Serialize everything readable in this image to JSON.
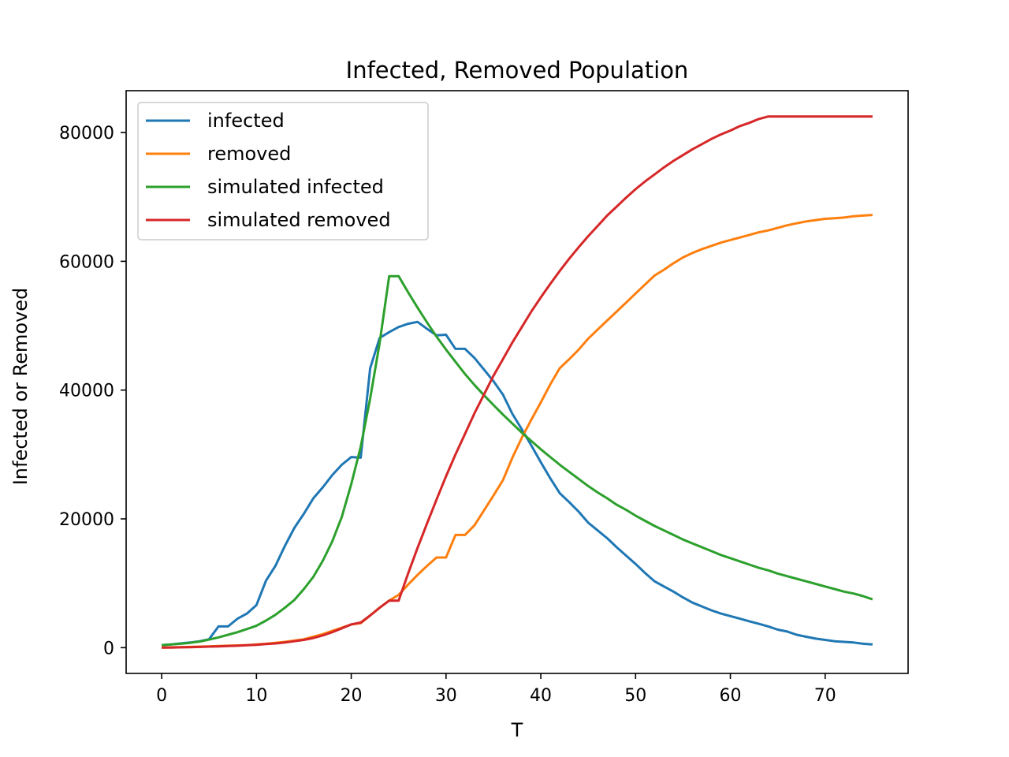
{
  "chart_data": {
    "type": "line",
    "title": "Infected, Removed Population",
    "xlabel": "T",
    "ylabel": "Infected or Removed",
    "xlim": [
      -3.75,
      78.75
    ],
    "ylim": [
      -4000,
      86500
    ],
    "xticks": [
      0,
      10,
      20,
      30,
      40,
      50,
      60,
      70
    ],
    "yticks": [
      0,
      20000,
      40000,
      60000,
      80000
    ],
    "grid": false,
    "legend_position": "upper-left",
    "series": [
      {
        "name": "infected",
        "color": "#1f77b4",
        "x": [
          0,
          1,
          2,
          3,
          4,
          5,
          6,
          7,
          8,
          9,
          10,
          11,
          12,
          13,
          14,
          15,
          16,
          17,
          18,
          19,
          20,
          21,
          22,
          23,
          24,
          25,
          26,
          27,
          28,
          29,
          30,
          31,
          32,
          33,
          34,
          35,
          36,
          37,
          38,
          39,
          40,
          41,
          42,
          43,
          44,
          45,
          46,
          47,
          48,
          49,
          50,
          51,
          52,
          53,
          54,
          55,
          56,
          57,
          58,
          59,
          60,
          61,
          62,
          63,
          64,
          65,
          66,
          67,
          68,
          69,
          70,
          71,
          72,
          73,
          74,
          75
        ],
        "y": [
          400,
          500,
          650,
          800,
          1000,
          1300,
          3300,
          3300,
          4500,
          5300,
          6600,
          10400,
          12700,
          15800,
          18600,
          20800,
          23200,
          24900,
          26800,
          28400,
          29600,
          29500,
          43400,
          48100,
          49000,
          49800,
          50300,
          50600,
          49500,
          48500,
          48600,
          46400,
          46400,
          45000,
          43200,
          41400,
          39300,
          36300,
          33900,
          31400,
          28800,
          26300,
          24000,
          22600,
          21100,
          19400,
          18200,
          17000,
          15600,
          14300,
          13000,
          11600,
          10300,
          9500,
          8700,
          7800,
          7000,
          6400,
          5800,
          5300,
          4900,
          4500,
          4100,
          3700,
          3300,
          2800,
          2500,
          2000,
          1700,
          1400,
          1200,
          1000,
          900,
          800,
          600,
          500
        ]
      },
      {
        "name": "removed",
        "color": "#ff7f0e",
        "x": [
          0,
          1,
          2,
          3,
          4,
          5,
          6,
          7,
          8,
          9,
          10,
          11,
          12,
          13,
          14,
          15,
          16,
          17,
          18,
          19,
          20,
          21,
          22,
          23,
          24,
          25,
          26,
          27,
          28,
          29,
          30,
          31,
          32,
          33,
          34,
          35,
          36,
          37,
          38,
          39,
          40,
          41,
          42,
          43,
          44,
          45,
          46,
          47,
          48,
          49,
          50,
          51,
          52,
          53,
          54,
          55,
          56,
          57,
          58,
          59,
          60,
          61,
          62,
          63,
          64,
          65,
          66,
          67,
          68,
          69,
          70,
          71,
          72,
          73,
          74,
          75
        ],
        "y": [
          0,
          50,
          80,
          120,
          160,
          200,
          250,
          300,
          350,
          400,
          500,
          600,
          750,
          900,
          1100,
          1300,
          1700,
          2100,
          2600,
          3100,
          3600,
          3800,
          5000,
          6200,
          7300,
          8200,
          9800,
          11300,
          12700,
          14000,
          14000,
          17500,
          17500,
          19000,
          21300,
          23600,
          26000,
          29500,
          32600,
          35400,
          38100,
          40900,
          43400,
          44800,
          46300,
          48000,
          49400,
          50800,
          52200,
          53600,
          55000,
          56400,
          57800,
          58700,
          59700,
          60600,
          61300,
          61900,
          62400,
          62900,
          63300,
          63700,
          64100,
          64500,
          64800,
          65200,
          65600,
          65900,
          66200,
          66400,
          66600,
          66700,
          66800,
          67000,
          67100,
          67200
        ]
      },
      {
        "name": "simulated infected",
        "color": "#2ca02c",
        "x": [
          0,
          1,
          2,
          3,
          4,
          5,
          6,
          7,
          8,
          9,
          10,
          11,
          12,
          13,
          14,
          15,
          16,
          17,
          18,
          19,
          20,
          21,
          22,
          23,
          24,
          25,
          26,
          27,
          28,
          29,
          30,
          31,
          32,
          33,
          34,
          35,
          36,
          37,
          38,
          39,
          40,
          41,
          42,
          43,
          44,
          45,
          46,
          47,
          48,
          49,
          50,
          51,
          52,
          53,
          54,
          55,
          56,
          57,
          58,
          59,
          60,
          61,
          62,
          63,
          64,
          65,
          66,
          67,
          68,
          69,
          70,
          71,
          72,
          73,
          74,
          75
        ],
        "y": [
          400,
          500,
          600,
          750,
          950,
          1250,
          1600,
          2000,
          2400,
          2900,
          3400,
          4200,
          5100,
          6200,
          7400,
          9100,
          11000,
          13500,
          16500,
          20300,
          25400,
          31200,
          38700,
          47300,
          57700,
          57700,
          55200,
          52800,
          50500,
          48300,
          46300,
          44400,
          42500,
          40800,
          39200,
          37700,
          36200,
          34800,
          33400,
          32100,
          30800,
          29600,
          28400,
          27300,
          26200,
          25100,
          24100,
          23200,
          22200,
          21400,
          20500,
          19700,
          18900,
          18200,
          17500,
          16800,
          16200,
          15600,
          15000,
          14400,
          13900,
          13400,
          12900,
          12400,
          12000,
          11500,
          11100,
          10700,
          10300,
          9900,
          9500,
          9100,
          8700,
          8400,
          8000,
          7500
        ]
      },
      {
        "name": "simulated removed",
        "color": "#d62728",
        "x": [
          0,
          1,
          2,
          3,
          4,
          5,
          6,
          7,
          8,
          9,
          10,
          11,
          12,
          13,
          14,
          15,
          16,
          17,
          18,
          19,
          20,
          21,
          22,
          23,
          24,
          25,
          26,
          27,
          28,
          29,
          30,
          31,
          32,
          33,
          34,
          35,
          36,
          37,
          38,
          39,
          40,
          41,
          42,
          43,
          44,
          45,
          46,
          47,
          48,
          49,
          50,
          51,
          52,
          53,
          54,
          55,
          56,
          57,
          58,
          59,
          60,
          61,
          62,
          63,
          64,
          65,
          66,
          67,
          68,
          69,
          70,
          71,
          72,
          73,
          74,
          75
        ],
        "y": [
          0,
          20,
          50,
          80,
          120,
          160,
          200,
          250,
          300,
          380,
          450,
          550,
          650,
          800,
          1000,
          1200,
          1500,
          1900,
          2400,
          3000,
          3600,
          3900,
          5000,
          6200,
          7300,
          7300,
          11500,
          15500,
          19300,
          23000,
          26600,
          30000,
          33200,
          36400,
          39300,
          42200,
          44800,
          47400,
          49800,
          52200,
          54400,
          56500,
          58500,
          60400,
          62200,
          63900,
          65500,
          67100,
          68500,
          69900,
          71200,
          72400,
          73500,
          74600,
          75600,
          76500,
          77400,
          78200,
          79000,
          79700,
          80300,
          81000,
          81500,
          82100,
          82500,
          82500,
          82500,
          82500,
          82500,
          82500,
          82500,
          82500,
          82500,
          82500,
          82500,
          82500
        ]
      }
    ]
  }
}
